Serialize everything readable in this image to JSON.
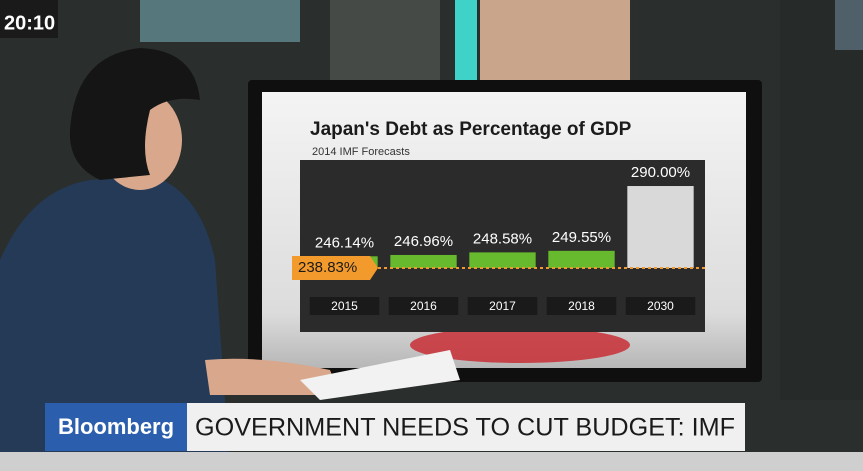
{
  "clock": "20:10",
  "lower_third": {
    "brand": "Bloomberg",
    "headline": "GOVERNMENT NEEDS TO CUT BUDGET: IMF"
  },
  "chart_data": {
    "type": "bar",
    "title": "Japan's Debt as Percentage of GDP",
    "subtitle": "2014 IMF Forecasts",
    "categories": [
      "2015",
      "2016",
      "2017",
      "2018",
      "2030"
    ],
    "values": [
      246.14,
      246.96,
      248.58,
      249.55,
      290.0
    ],
    "value_labels": [
      "246.14%",
      "246.96%",
      "248.58%",
      "249.55%",
      "290.00%"
    ],
    "colors": [
      "#67b92e",
      "#67b92e",
      "#67b92e",
      "#67b92e",
      "#d9d9d9"
    ],
    "baseline": {
      "value": 238.83,
      "label": "238.83%",
      "color": "#f39a2c"
    },
    "ylim": [
      238.83,
      300
    ]
  }
}
